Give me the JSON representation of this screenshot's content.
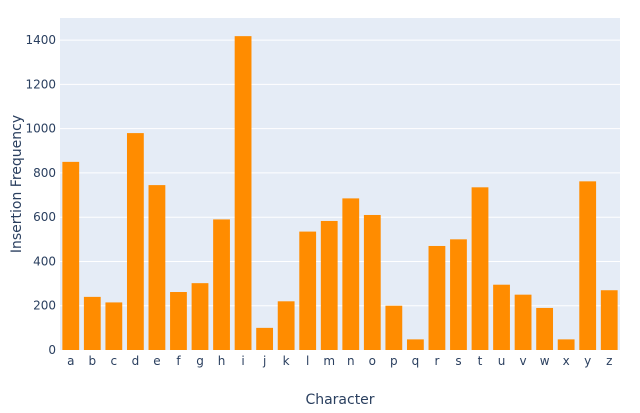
{
  "chart_data": {
    "type": "bar",
    "title": "",
    "xlabel": "Character",
    "ylabel": "Insertion Frequency",
    "categories": [
      "a",
      "b",
      "c",
      "d",
      "e",
      "f",
      "g",
      "h",
      "i",
      "j",
      "k",
      "l",
      "m",
      "n",
      "o",
      "p",
      "q",
      "r",
      "s",
      "t",
      "u",
      "v",
      "w",
      "x",
      "y",
      "z"
    ],
    "values": [
      850,
      240,
      215,
      980,
      745,
      262,
      302,
      590,
      1418,
      100,
      220,
      535,
      583,
      685,
      610,
      200,
      48,
      470,
      500,
      735,
      295,
      250,
      190,
      48,
      762,
      270
    ],
    "ylim": [
      0,
      1500
    ],
    "yticks": [
      0,
      200,
      400,
      600,
      800,
      1000,
      1200,
      1400
    ],
    "grid": true,
    "legend": "none"
  },
  "colors": {
    "bar": "#ff8c00",
    "plot_background": "#e5ecf6",
    "grid": "#ffffff",
    "text": "#2a3f5f"
  }
}
